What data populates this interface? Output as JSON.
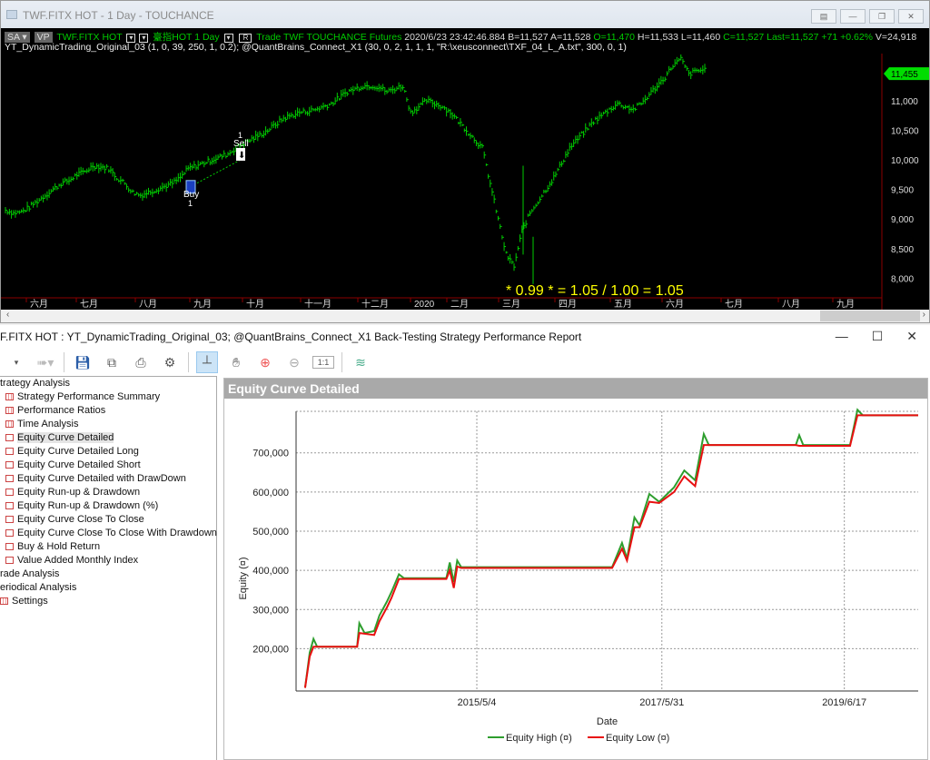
{
  "top_window": {
    "title": "TWF.FITX HOT - 1 Day - TOUCHANCE",
    "info_line1": {
      "sa": "SA",
      "vp": "VP",
      "symbol": "TWF.FITX HOT",
      "name": "臺指HOT",
      "interval": "1 Day",
      "r": "R",
      "trade": "Trade",
      "exchange": "TWF",
      "source": "TOUCHANCE",
      "type": "Futures",
      "datetime": "2020/6/23  23:42:46.884",
      "bid": "B=11,527",
      "ask": "A=11,528",
      "open": "O=11,470",
      "high": "H=11,533",
      "low": "L=11,460",
      "close": "C=11,527",
      "last": "Last=11,527",
      "change": "+71",
      "pct": "+0.62%",
      "volume": "V=24,918"
    },
    "info_line2": "YT_DynamicTrading_Original_03 (1, 0, 39, 250, 1, 0.2); @QuantBrains_Connect_X1 (30, 0, 2, 1, 1, 1, \"R:\\xeusconnect\\TXF_04_L_A.txt\", 300, 0, 1)",
    "overlay_text": "* 0.99 *    = 1.05 / 1.00 = 1.05",
    "price_badge": "11,455",
    "price_ticks": [
      "11,000",
      "10,500",
      "10,000",
      "9,500",
      "9,000",
      "8,500",
      "8,000"
    ],
    "price_tick_values": [
      11000,
      10500,
      10000,
      9500,
      9000,
      8500,
      8000
    ],
    "months": [
      "六月",
      "七月",
      "八月",
      "九月",
      "十月",
      "十一月",
      "十二月",
      "2020",
      "二月",
      "三月",
      "四月",
      "五月",
      "六月",
      "七月",
      "八月",
      "九月"
    ],
    "markers": {
      "sell_label": "Sell",
      "sell_qty": "1",
      "buy_label": "Buy",
      "buy_qty": "1"
    },
    "closes": [
      9150,
      9100,
      9120,
      9200,
      9300,
      9400,
      9500,
      9600,
      9650,
      9750,
      9800,
      9900,
      9880,
      9850,
      9700,
      9600,
      9450,
      9400,
      9450,
      9500,
      9550,
      9600,
      9700,
      9850,
      9900,
      9950,
      10000,
      10050,
      10100,
      10200,
      10280,
      10350,
      10420,
      10500,
      10600,
      10700,
      10750,
      10800,
      10820,
      10850,
      10900,
      10950,
      11050,
      11150,
      11200,
      11250,
      11250,
      11230,
      11150,
      11200,
      11250,
      10800,
      10900,
      11000,
      10950,
      10900,
      10800,
      10650,
      10500,
      10350,
      10200,
      9600,
      9000,
      8400,
      8200,
      8800,
      9100,
      9300,
      9500,
      9700,
      9950,
      10200,
      10350,
      10500,
      10650,
      10750,
      10850,
      10950,
      10900,
      10850,
      10950,
      11100,
      11250,
      11400,
      11600,
      11700,
      11450,
      11500,
      11527
    ],
    "colors": {
      "bar": "#00cc00",
      "grid_line": "#8b0000",
      "overlay": "#ffff00",
      "badge": "#00dd00"
    }
  },
  "bottom_window": {
    "title": "F.FITX HOT : YT_DynamicTrading_Original_03; @QuantBrains_Connect_X1 Back-Testing Strategy Performance Report",
    "tree": [
      {
        "label": "trategy Analysis",
        "level": 0,
        "icon": "none"
      },
      {
        "label": "Strategy Performance Summary",
        "level": 1,
        "icon": "grid"
      },
      {
        "label": "Performance Ratios",
        "level": 1,
        "icon": "grid"
      },
      {
        "label": "Time Analysis",
        "level": 1,
        "icon": "grid"
      },
      {
        "label": "Equity Curve Detailed",
        "level": 1,
        "icon": "chart",
        "selected": true
      },
      {
        "label": "Equity Curve Detailed Long",
        "level": 1,
        "icon": "chart"
      },
      {
        "label": "Equity Curve Detailed Short",
        "level": 1,
        "icon": "chart"
      },
      {
        "label": "Equity Curve Detailed with DrawDown",
        "level": 1,
        "icon": "chart"
      },
      {
        "label": "Equity Run-up & Drawdown",
        "level": 1,
        "icon": "chart"
      },
      {
        "label": "Equity Run-up & Drawdown (%)",
        "level": 1,
        "icon": "chart"
      },
      {
        "label": "Equity Curve Close To Close",
        "level": 1,
        "icon": "chart"
      },
      {
        "label": "Equity Curve Close To Close With Drawdown",
        "level": 1,
        "icon": "chart"
      },
      {
        "label": "Buy & Hold Return",
        "level": 1,
        "icon": "chart"
      },
      {
        "label": "Value Added Monthly Index",
        "level": 1,
        "icon": "chart"
      },
      {
        "label": "rade Analysis",
        "level": 0,
        "icon": "none"
      },
      {
        "label": "eriodical Analysis",
        "level": 0,
        "icon": "none"
      },
      {
        "label": "Settings",
        "level": 0,
        "icon": "grid"
      }
    ],
    "panel_title": "Equity Curve Detailed"
  },
  "chart_data": {
    "type": "line",
    "title": "",
    "xlabel": "Date",
    "ylabel": "Equity (¤)",
    "ylim": [
      92000,
      806000
    ],
    "xlim": [
      "2013/4/25",
      "2020/4/15"
    ],
    "yticks": [
      200000,
      300000,
      400000,
      500000,
      600000,
      700000
    ],
    "ytick_labels": [
      "200,000",
      "300,000",
      "400,000",
      "500,000",
      "600,000",
      "700,000"
    ],
    "xticks": [
      "2015/5/4",
      "2017/5/31",
      "2019/6/17"
    ],
    "grid": true,
    "legend_position": "bottom",
    "series": [
      {
        "name": "Equity High (¤)",
        "color": "#2e9e2e",
        "points": [
          [
            "2013/6/1",
            100000
          ],
          [
            "2013/6/20",
            190000
          ],
          [
            "2013/7/5",
            225000
          ],
          [
            "2013/7/20",
            205000
          ],
          [
            "2014/1/1",
            205000
          ],
          [
            "2014/1/10",
            265000
          ],
          [
            "2014/2/1",
            240000
          ],
          [
            "2014/3/10",
            245000
          ],
          [
            "2014/4/1",
            285000
          ],
          [
            "2014/5/1",
            320000
          ],
          [
            "2014/5/20",
            345000
          ],
          [
            "2014/6/20",
            390000
          ],
          [
            "2014/7/10",
            380000
          ],
          [
            "2015/1/1",
            380000
          ],
          [
            "2015/1/15",
            420000
          ],
          [
            "2015/2/1",
            370000
          ],
          [
            "2015/2/15",
            425000
          ],
          [
            "2015/3/1",
            408000
          ],
          [
            "2016/11/10",
            408000
          ],
          [
            "2016/12/20",
            470000
          ],
          [
            "2017/1/10",
            430000
          ],
          [
            "2017/2/10",
            535000
          ],
          [
            "2017/3/1",
            515000
          ],
          [
            "2017/4/10",
            595000
          ],
          [
            "2017/5/20",
            575000
          ],
          [
            "2017/7/20",
            612000
          ],
          [
            "2017/9/1",
            655000
          ],
          [
            "2017/10/15",
            630000
          ],
          [
            "2017/11/20",
            748000
          ],
          [
            "2017/12/10",
            720000
          ],
          [
            "2018/12/1",
            720000
          ],
          [
            "2018/12/15",
            745000
          ],
          [
            "2019/1/1",
            720000
          ],
          [
            "2019/7/10",
            720000
          ],
          [
            "2019/8/10",
            810000
          ],
          [
            "2019/9/1",
            796000
          ],
          [
            "2020/4/15",
            796000
          ]
        ]
      },
      {
        "name": "Equity Low (¤)",
        "color": "#e81010",
        "points": [
          [
            "2013/6/1",
            100000
          ],
          [
            "2013/6/20",
            180000
          ],
          [
            "2013/7/5",
            205000
          ],
          [
            "2014/1/1",
            205000
          ],
          [
            "2014/1/10",
            240000
          ],
          [
            "2014/3/10",
            235000
          ],
          [
            "2014/4/1",
            270000
          ],
          [
            "2014/5/1",
            305000
          ],
          [
            "2014/5/20",
            330000
          ],
          [
            "2014/6/20",
            378000
          ],
          [
            "2015/1/1",
            378000
          ],
          [
            "2015/1/15",
            400000
          ],
          [
            "2015/2/1",
            355000
          ],
          [
            "2015/2/15",
            410000
          ],
          [
            "2015/3/1",
            406000
          ],
          [
            "2016/11/10",
            406000
          ],
          [
            "2016/12/20",
            455000
          ],
          [
            "2017/1/10",
            425000
          ],
          [
            "2017/2/10",
            510000
          ],
          [
            "2017/3/1",
            510000
          ],
          [
            "2017/4/10",
            575000
          ],
          [
            "2017/5/20",
            572000
          ],
          [
            "2017/7/20",
            600000
          ],
          [
            "2017/9/1",
            640000
          ],
          [
            "2017/10/15",
            615000
          ],
          [
            "2017/11/20",
            720000
          ],
          [
            "2018/12/1",
            720000
          ],
          [
            "2018/12/15",
            718000
          ],
          [
            "2019/7/10",
            718000
          ],
          [
            "2019/8/10",
            796000
          ],
          [
            "2020/4/15",
            796000
          ]
        ]
      }
    ]
  }
}
